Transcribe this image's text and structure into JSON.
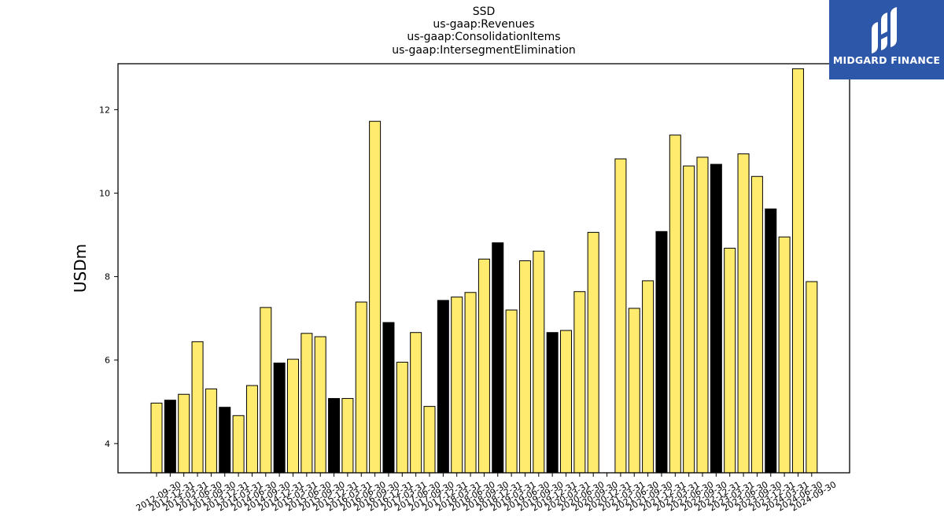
{
  "chart_data": {
    "type": "bar",
    "title_lines": [
      "SSD",
      "us-gaap:Revenues",
      "us-gaap:ConsolidationItems",
      "us-gaap:IntersegmentElimination"
    ],
    "xlabel": "",
    "ylabel": "USDm",
    "ylim": [
      3.3,
      13.1
    ],
    "yticks": [
      4,
      6,
      8,
      10,
      12
    ],
    "categories": [
      "2012-09-30",
      "2012-12-31",
      "2013-03-31",
      "2013-06-30",
      "2013-09-30",
      "2013-12-31",
      "2014-03-31",
      "2014-06-30",
      "2014-09-30",
      "2014-12-31",
      "2015-03-31",
      "2015-06-30",
      "2015-09-30",
      "2015-12-31",
      "2016-03-31",
      "2016-06-30",
      "2016-09-30",
      "2016-12-31",
      "2017-03-31",
      "2017-06-30",
      "2017-09-30",
      "2017-12-31",
      "2018-03-31",
      "2018-06-30",
      "2018-09-30",
      "2018-12-31",
      "2019-03-31",
      "2019-06-30",
      "2019-09-30",
      "2019-12-31",
      "2020-03-31",
      "2020-06-30",
      "2020-09-30",
      "2020-12-31",
      "2021-03-31",
      "2021-06-30",
      "2021-09-30",
      "2021-12-31",
      "2022-03-31",
      "2022-06-30",
      "2022-09-30",
      "2022-12-31",
      "2023-03-31",
      "2023-06-30",
      "2023-09-30",
      "2023-12-31",
      "2024-03-31",
      "2024-06-30",
      "2024-09-30"
    ],
    "values": [
      4.97,
      5.04,
      5.18,
      6.44,
      5.31,
      4.87,
      4.67,
      5.39,
      7.26,
      5.93,
      6.02,
      6.64,
      6.56,
      5.08,
      5.08,
      7.39,
      11.72,
      6.9,
      5.95,
      6.66,
      4.89,
      7.43,
      7.51,
      7.62,
      8.42,
      8.81,
      7.2,
      8.38,
      8.61,
      6.66,
      6.71,
      7.64,
      9.06,
      null,
      10.82,
      7.24,
      7.9,
      9.08,
      11.39,
      10.65,
      10.86,
      10.69,
      8.68,
      10.94,
      10.4,
      9.62,
      8.95,
      12.98,
      7.88
    ],
    "bar_colors": [
      "yellow",
      "black",
      "yellow",
      "yellow",
      "yellow",
      "black",
      "yellow",
      "yellow",
      "yellow",
      "black",
      "yellow",
      "yellow",
      "yellow",
      "black",
      "yellow",
      "yellow",
      "yellow",
      "black",
      "yellow",
      "yellow",
      "yellow",
      "black",
      "yellow",
      "yellow",
      "yellow",
      "black",
      "yellow",
      "yellow",
      "yellow",
      "black",
      "yellow",
      "yellow",
      "yellow",
      "black",
      "yellow",
      "yellow",
      "yellow",
      "black",
      "yellow",
      "yellow",
      "yellow",
      "black",
      "yellow",
      "yellow",
      "yellow",
      "black",
      "yellow",
      "yellow",
      "yellow"
    ],
    "colors": {
      "yellow": "#ffec6e",
      "black": "#000000",
      "edge": "#000000"
    },
    "grid": false
  },
  "logo": {
    "text": "MIDGARD FINANCE",
    "background": "#2d57a9"
  }
}
